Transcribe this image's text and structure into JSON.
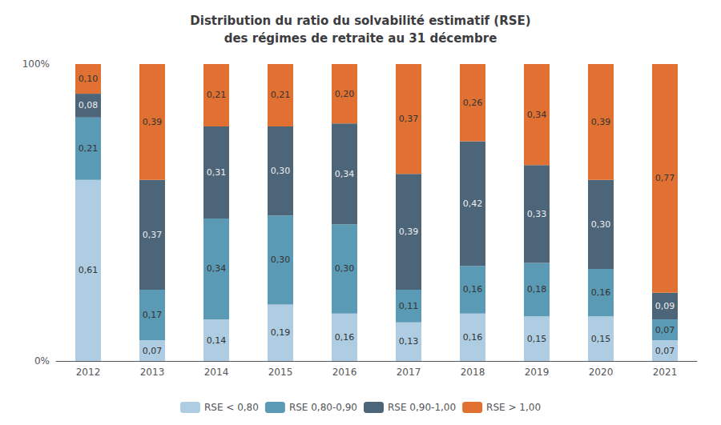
{
  "chart_data": {
    "type": "bar",
    "title": "Distribution du ratio du solvabilité estimatif (RSE)\ndes régimes de retraite au 31 décembre",
    "categories": [
      "2012",
      "2013",
      "2014",
      "2015",
      "2016",
      "2017",
      "2018",
      "2019",
      "2020",
      "2021"
    ],
    "stacked": true,
    "data_labels": true,
    "grid": false,
    "legend": "bottom",
    "ylim": [
      0,
      1.0
    ],
    "yticks": [
      {
        "value": 0,
        "label": "0%"
      },
      {
        "value": 1.0,
        "label": "100%"
      }
    ],
    "series": [
      {
        "name": "RSE < 0,80",
        "color": "#aecde2",
        "values": [
          0.61,
          0.07,
          0.14,
          0.19,
          0.16,
          0.13,
          0.16,
          0.15,
          0.15,
          0.07
        ],
        "value_labels": [
          "0,61",
          "0,07",
          "0,14",
          "0,19",
          "0,16",
          "0,13",
          "0,16",
          "0,15",
          "0,15",
          "0,07"
        ]
      },
      {
        "name": "RSE 0,80-0,90",
        "color": "#5b9ab5",
        "values": [
          0.21,
          0.17,
          0.34,
          0.3,
          0.3,
          0.11,
          0.16,
          0.18,
          0.16,
          0.07
        ],
        "value_labels": [
          "0,21",
          "0,17",
          "0,34",
          "0,30",
          "0,30",
          "0,11",
          "0,16",
          "0,18",
          "0,16",
          "0,07"
        ]
      },
      {
        "name": "RSE 0,90-1,00",
        "color": "#4d6579",
        "values": [
          0.08,
          0.37,
          0.31,
          0.3,
          0.34,
          0.39,
          0.42,
          0.33,
          0.3,
          0.09
        ],
        "value_labels": [
          "0,08",
          "0,37",
          "0,31",
          "0,30",
          "0,34",
          "0,39",
          "0,42",
          "0,33",
          "0,30",
          "0,09"
        ]
      },
      {
        "name": "RSE > 1,00",
        "color": "#e07132",
        "values": [
          0.1,
          0.39,
          0.21,
          0.21,
          0.2,
          0.37,
          0.26,
          0.34,
          0.39,
          0.77
        ],
        "value_labels": [
          "0,10",
          "0,39",
          "0,21",
          "0,21",
          "0,20",
          "0,37",
          "0,26",
          "0,34",
          "0,39",
          "0,77"
        ]
      }
    ]
  }
}
